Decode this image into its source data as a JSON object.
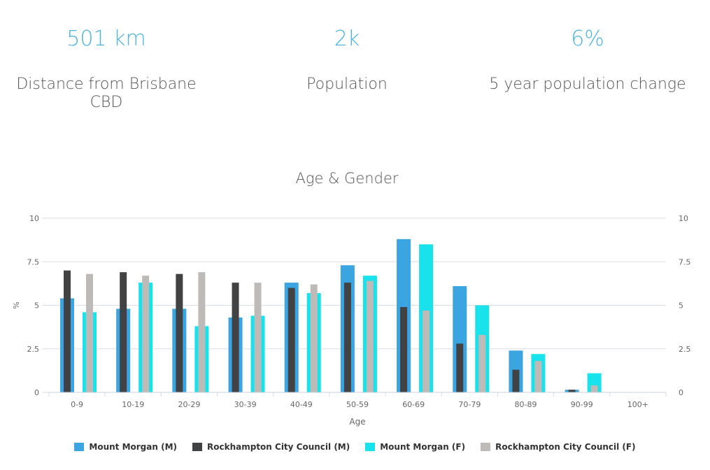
{
  "stats": [
    {
      "value": "501 km",
      "label": "Distance from Brisbane CBD"
    },
    {
      "value": "2k",
      "label": "Population"
    },
    {
      "value": "6%",
      "label": "5 year population change"
    }
  ],
  "colors": {
    "mm_m": "#3aa5e0",
    "rcc_m": "#404244",
    "mm_f": "#18e3ec",
    "rcc_f": "#bdbab8",
    "grid": "#d8dee6",
    "axis_text": "#666666"
  },
  "chart_data": {
    "type": "bar",
    "title": "Age & Gender",
    "xlabel": "Age",
    "ylabel": "%",
    "ylim": [
      0,
      10
    ],
    "yticks": [
      "0",
      "2.5",
      "5",
      "7.5",
      "10"
    ],
    "categories": [
      "0-9",
      "10-19",
      "20-29",
      "30-39",
      "40-49",
      "50-59",
      "60-69",
      "70-79",
      "80-89",
      "90-99",
      "100+"
    ],
    "series": [
      {
        "name": "Mount Morgan (M)",
        "key": "mm_m",
        "values": [
          5.4,
          4.8,
          4.8,
          4.3,
          6.3,
          7.3,
          8.8,
          6.1,
          2.4,
          0.15,
          0
        ]
      },
      {
        "name": "Rockhampton City Council (M)",
        "key": "rcc_m",
        "values": [
          7.0,
          6.9,
          6.8,
          6.3,
          6.0,
          6.3,
          4.9,
          2.8,
          1.3,
          0.15,
          0
        ]
      },
      {
        "name": "Mount Morgan (F)",
        "key": "mm_f",
        "values": [
          4.6,
          6.3,
          3.8,
          4.4,
          5.7,
          6.7,
          8.5,
          5.0,
          2.2,
          1.1,
          0
        ]
      },
      {
        "name": "Rockhampton City Council (F)",
        "key": "rcc_f",
        "values": [
          6.8,
          6.7,
          6.9,
          6.3,
          6.2,
          6.4,
          4.7,
          3.3,
          1.8,
          0.4,
          0
        ]
      }
    ]
  }
}
